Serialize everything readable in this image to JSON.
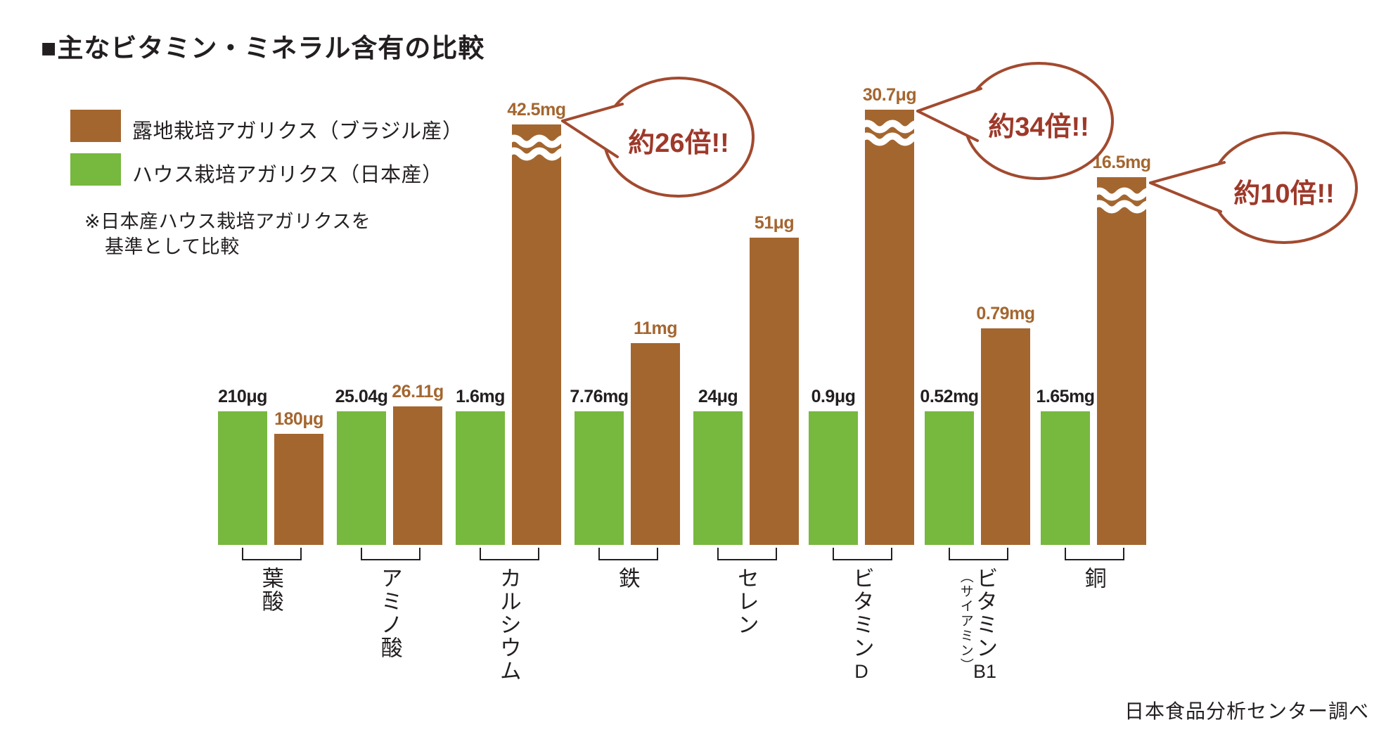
{
  "title": "■主なビタミン・ミネラル含有の比較",
  "legend": {
    "brown": {
      "label": "露地栽培アガリクス（ブラジル産）",
      "color": "#a4662f"
    },
    "green": {
      "label": "ハウス栽培アガリクス（日本産）",
      "color": "#77b83e"
    }
  },
  "note": {
    "line1": "※日本産ハウス栽培アガリクスを",
    "line2": "基準として比較"
  },
  "source": "日本食品分析センター調べ",
  "colors": {
    "bar_brown": "#a4662f",
    "bar_green": "#77b83e",
    "callout_stroke": "#a24a2f",
    "callout_text": "#9e392a",
    "text_black": "#231f20"
  },
  "chart_data": {
    "type": "bar",
    "title": "主なビタミン・ミネラル含有の比較",
    "note": "日本産ハウス栽培アガリクスを基準として比較",
    "legend_position": "top-left",
    "categories": [
      "葉酸",
      "アミノ酸",
      "カルシウム",
      "鉄",
      "セレン",
      "ビタミンD",
      "ビタミンB1（サイアミン）",
      "銅"
    ],
    "series": [
      {
        "name": "ハウス栽培アガリクス（日本産）",
        "color": "#77b83e",
        "values": [
          "210μg",
          "25.04g",
          "1.6mg",
          "7.76mg",
          "24μg",
          "0.9μg",
          "0.52mg",
          "1.65mg"
        ]
      },
      {
        "name": "露地栽培アガリクス（ブラジル産）",
        "color": "#a4662f",
        "values": [
          "180μg",
          "26.11g",
          "42.5mg",
          "11mg",
          "51μg",
          "30.7μg",
          "0.79mg",
          "16.5mg"
        ]
      }
    ],
    "pairs": [
      {
        "category": "葉酸",
        "green": "210μg",
        "brown": "180μg"
      },
      {
        "category": "アミノ酸",
        "green": "25.04g",
        "brown": "26.11g"
      },
      {
        "category": "カルシウム",
        "green": "1.6mg",
        "brown": "42.5mg",
        "callout": "約26倍!!"
      },
      {
        "category": "鉄",
        "green": "7.76mg",
        "brown": "11mg"
      },
      {
        "category": "セレン",
        "green": "24μg",
        "brown": "51μg"
      },
      {
        "category": "ビタミンD",
        "cat_main": "ビタミン",
        "cat_suffix": "D",
        "green": "0.9μg",
        "brown": "30.7μg",
        "callout": "約34倍!!"
      },
      {
        "category": "ビタミンB1（サイアミン）",
        "cat_main": "ビタミン",
        "cat_suffix": "B1",
        "cat_sub": "（サイアミン）",
        "green": "0.52mg",
        "brown": "0.79mg"
      },
      {
        "category": "銅",
        "green": "1.65mg",
        "brown": "16.5mg"
      }
    ],
    "callouts": [
      {
        "category": "カルシウム",
        "text": "約26倍!!"
      },
      {
        "category": "ビタミンD",
        "text": "約34倍!!"
      },
      {
        "category": "銅",
        "text": "約10倍!!"
      }
    ]
  }
}
